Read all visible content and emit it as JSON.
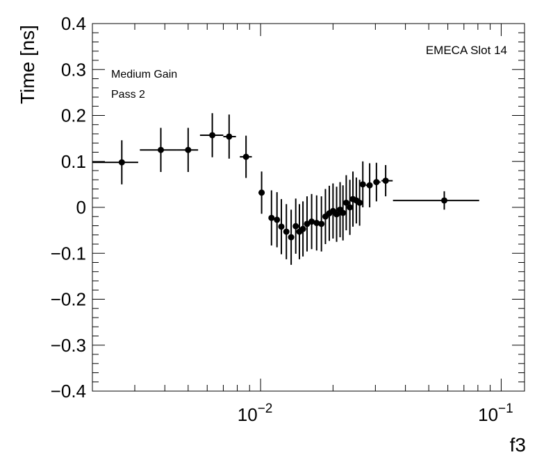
{
  "chart_data": {
    "type": "scatter",
    "xscale": "log",
    "xlim": [
      0.002,
      0.125
    ],
    "ylim": [
      -0.4,
      0.4
    ],
    "xlabel": "f3",
    "ylabel": "Time [ns]",
    "title": "EMECA Slot 14",
    "annotations": [
      "Medium Gain",
      "Pass 2"
    ],
    "grid": false,
    "marker": "circle",
    "error_bars": true,
    "y_ticks": [
      {
        "v": 0.4,
        "label": "0.4"
      },
      {
        "v": 0.3,
        "label": "0.3"
      },
      {
        "v": 0.2,
        "label": "0.2"
      },
      {
        "v": 0.1,
        "label": "0.1"
      },
      {
        "v": 0.0,
        "label": "0"
      },
      {
        "v": -0.1,
        "label": "−0.1"
      },
      {
        "v": -0.2,
        "label": "−0.2"
      },
      {
        "v": -0.3,
        "label": "−0.3"
      },
      {
        "v": -0.4,
        "label": "−0.4"
      }
    ],
    "x_ticks": [
      {
        "v": 0.01,
        "base": "10",
        "exp": "−2"
      },
      {
        "v": 0.1,
        "base": "10",
        "exp": "−1"
      }
    ],
    "points": [
      {
        "x": 0.00265,
        "y": 0.098,
        "xlo": 0.002,
        "xhi": 0.0031,
        "yerr": 0.048
      },
      {
        "x": 0.00385,
        "y": 0.125,
        "xlo": 0.00315,
        "xhi": 0.0045,
        "yerr": 0.048
      },
      {
        "x": 0.005,
        "y": 0.125,
        "xlo": 0.0045,
        "xhi": 0.0055,
        "yerr": 0.048
      },
      {
        "x": 0.0063,
        "y": 0.157,
        "xlo": 0.0056,
        "xhi": 0.007,
        "yerr": 0.048
      },
      {
        "x": 0.0074,
        "y": 0.154,
        "xlo": 0.007,
        "xhi": 0.0079,
        "yerr": 0.048
      },
      {
        "x": 0.0087,
        "y": 0.11,
        "xlo": 0.0082,
        "xhi": 0.0092,
        "yerr": 0.046
      },
      {
        "x": 0.0101,
        "y": 0.032,
        "xlo": 0.0098,
        "xhi": 0.0104,
        "yerr": 0.046
      },
      {
        "x": 0.0111,
        "y": -0.023,
        "xlo": 0.0108,
        "xhi": 0.0114,
        "yerr": 0.06
      },
      {
        "x": 0.0117,
        "y": -0.027,
        "xlo": 0.0115,
        "xhi": 0.0119,
        "yerr": 0.06
      },
      {
        "x": 0.0122,
        "y": -0.042,
        "xlo": 0.012,
        "xhi": 0.0124,
        "yerr": 0.06
      },
      {
        "x": 0.0128,
        "y": -0.053,
        "xlo": 0.0126,
        "xhi": 0.013,
        "yerr": 0.06
      },
      {
        "x": 0.0134,
        "y": -0.065,
        "xlo": 0.0132,
        "xhi": 0.0136,
        "yerr": 0.06
      },
      {
        "x": 0.014,
        "y": -0.041,
        "xlo": 0.0138,
        "xhi": 0.0142,
        "yerr": 0.06
      },
      {
        "x": 0.0145,
        "y": -0.053,
        "xlo": 0.0143,
        "xhi": 0.0147,
        "yerr": 0.06
      },
      {
        "x": 0.015,
        "y": -0.047,
        "xlo": 0.0148,
        "xhi": 0.0152,
        "yerr": 0.06
      },
      {
        "x": 0.0156,
        "y": -0.036,
        "xlo": 0.0154,
        "xhi": 0.0158,
        "yerr": 0.06
      },
      {
        "x": 0.0163,
        "y": -0.031,
        "xlo": 0.0161,
        "xhi": 0.0165,
        "yerr": 0.06
      },
      {
        "x": 0.0171,
        "y": -0.034,
        "xlo": 0.0169,
        "xhi": 0.0173,
        "yerr": 0.06
      },
      {
        "x": 0.0179,
        "y": -0.036,
        "xlo": 0.0177,
        "xhi": 0.0181,
        "yerr": 0.06
      },
      {
        "x": 0.0186,
        "y": -0.02,
        "xlo": 0.0184,
        "xhi": 0.0188,
        "yerr": 0.06
      },
      {
        "x": 0.0193,
        "y": -0.013,
        "xlo": 0.0191,
        "xhi": 0.0195,
        "yerr": 0.06
      },
      {
        "x": 0.02,
        "y": -0.008,
        "xlo": 0.0198,
        "xhi": 0.0202,
        "yerr": 0.06
      },
      {
        "x": 0.0207,
        "y": -0.015,
        "xlo": 0.0205,
        "xhi": 0.0209,
        "yerr": 0.06
      },
      {
        "x": 0.0214,
        "y": -0.005,
        "xlo": 0.0212,
        "xhi": 0.0216,
        "yerr": 0.06
      },
      {
        "x": 0.022,
        "y": -0.012,
        "xlo": 0.0218,
        "xhi": 0.0222,
        "yerr": 0.06
      },
      {
        "x": 0.0227,
        "y": 0.01,
        "xlo": 0.0225,
        "xhi": 0.0229,
        "yerr": 0.06
      },
      {
        "x": 0.0235,
        "y": 0.0,
        "xlo": 0.0233,
        "xhi": 0.0237,
        "yerr": 0.06
      },
      {
        "x": 0.0242,
        "y": 0.018,
        "xlo": 0.024,
        "xhi": 0.0244,
        "yerr": 0.06
      },
      {
        "x": 0.025,
        "y": 0.015,
        "xlo": 0.0248,
        "xhi": 0.0252,
        "yerr": 0.05
      },
      {
        "x": 0.0258,
        "y": 0.01,
        "xlo": 0.0256,
        "xhi": 0.026,
        "yerr": 0.05
      },
      {
        "x": 0.0266,
        "y": 0.05,
        "xlo": 0.0264,
        "xhi": 0.0268,
        "yerr": 0.05
      },
      {
        "x": 0.0284,
        "y": 0.048,
        "xlo": 0.0274,
        "xhi": 0.0289,
        "yerr": 0.048
      },
      {
        "x": 0.0303,
        "y": 0.055,
        "xlo": 0.0294,
        "xhi": 0.0315,
        "yerr": 0.042
      },
      {
        "x": 0.0331,
        "y": 0.058,
        "xlo": 0.0318,
        "xhi": 0.0354,
        "yerr": 0.034
      },
      {
        "x": 0.058,
        "y": 0.015,
        "xlo": 0.0355,
        "xhi": 0.081,
        "yerr": 0.02
      }
    ]
  }
}
